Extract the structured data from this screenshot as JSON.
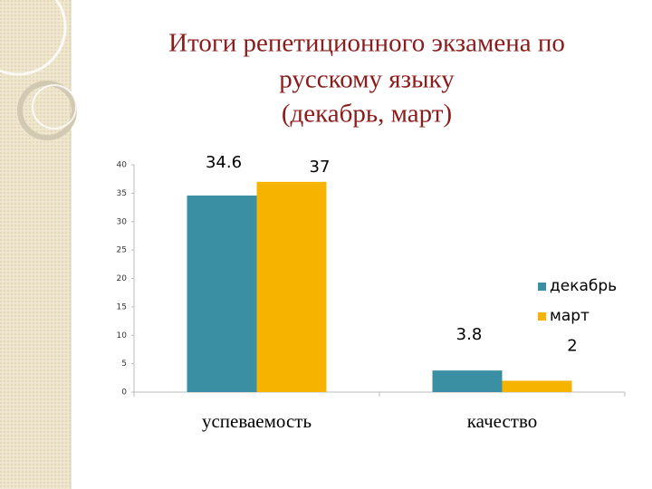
{
  "chart_data": {
    "type": "bar",
    "title": [
      "Итоги репетиционного экзамена по",
      "русскому языку",
      "(декабрь,  март)"
    ],
    "categories": [
      "успеваемость",
      "качество"
    ],
    "series": [
      {
        "name": "декабрь",
        "color": "#3a8fa3",
        "values": [
          34.6,
          3.8
        ]
      },
      {
        "name": "март",
        "color": "#f6b400",
        "values": [
          37,
          2
        ]
      }
    ],
    "ylim": [
      0,
      40
    ],
    "yticks": [
      0,
      5,
      10,
      15,
      20,
      25,
      30,
      35,
      40
    ],
    "grid": false,
    "legend": "right"
  }
}
